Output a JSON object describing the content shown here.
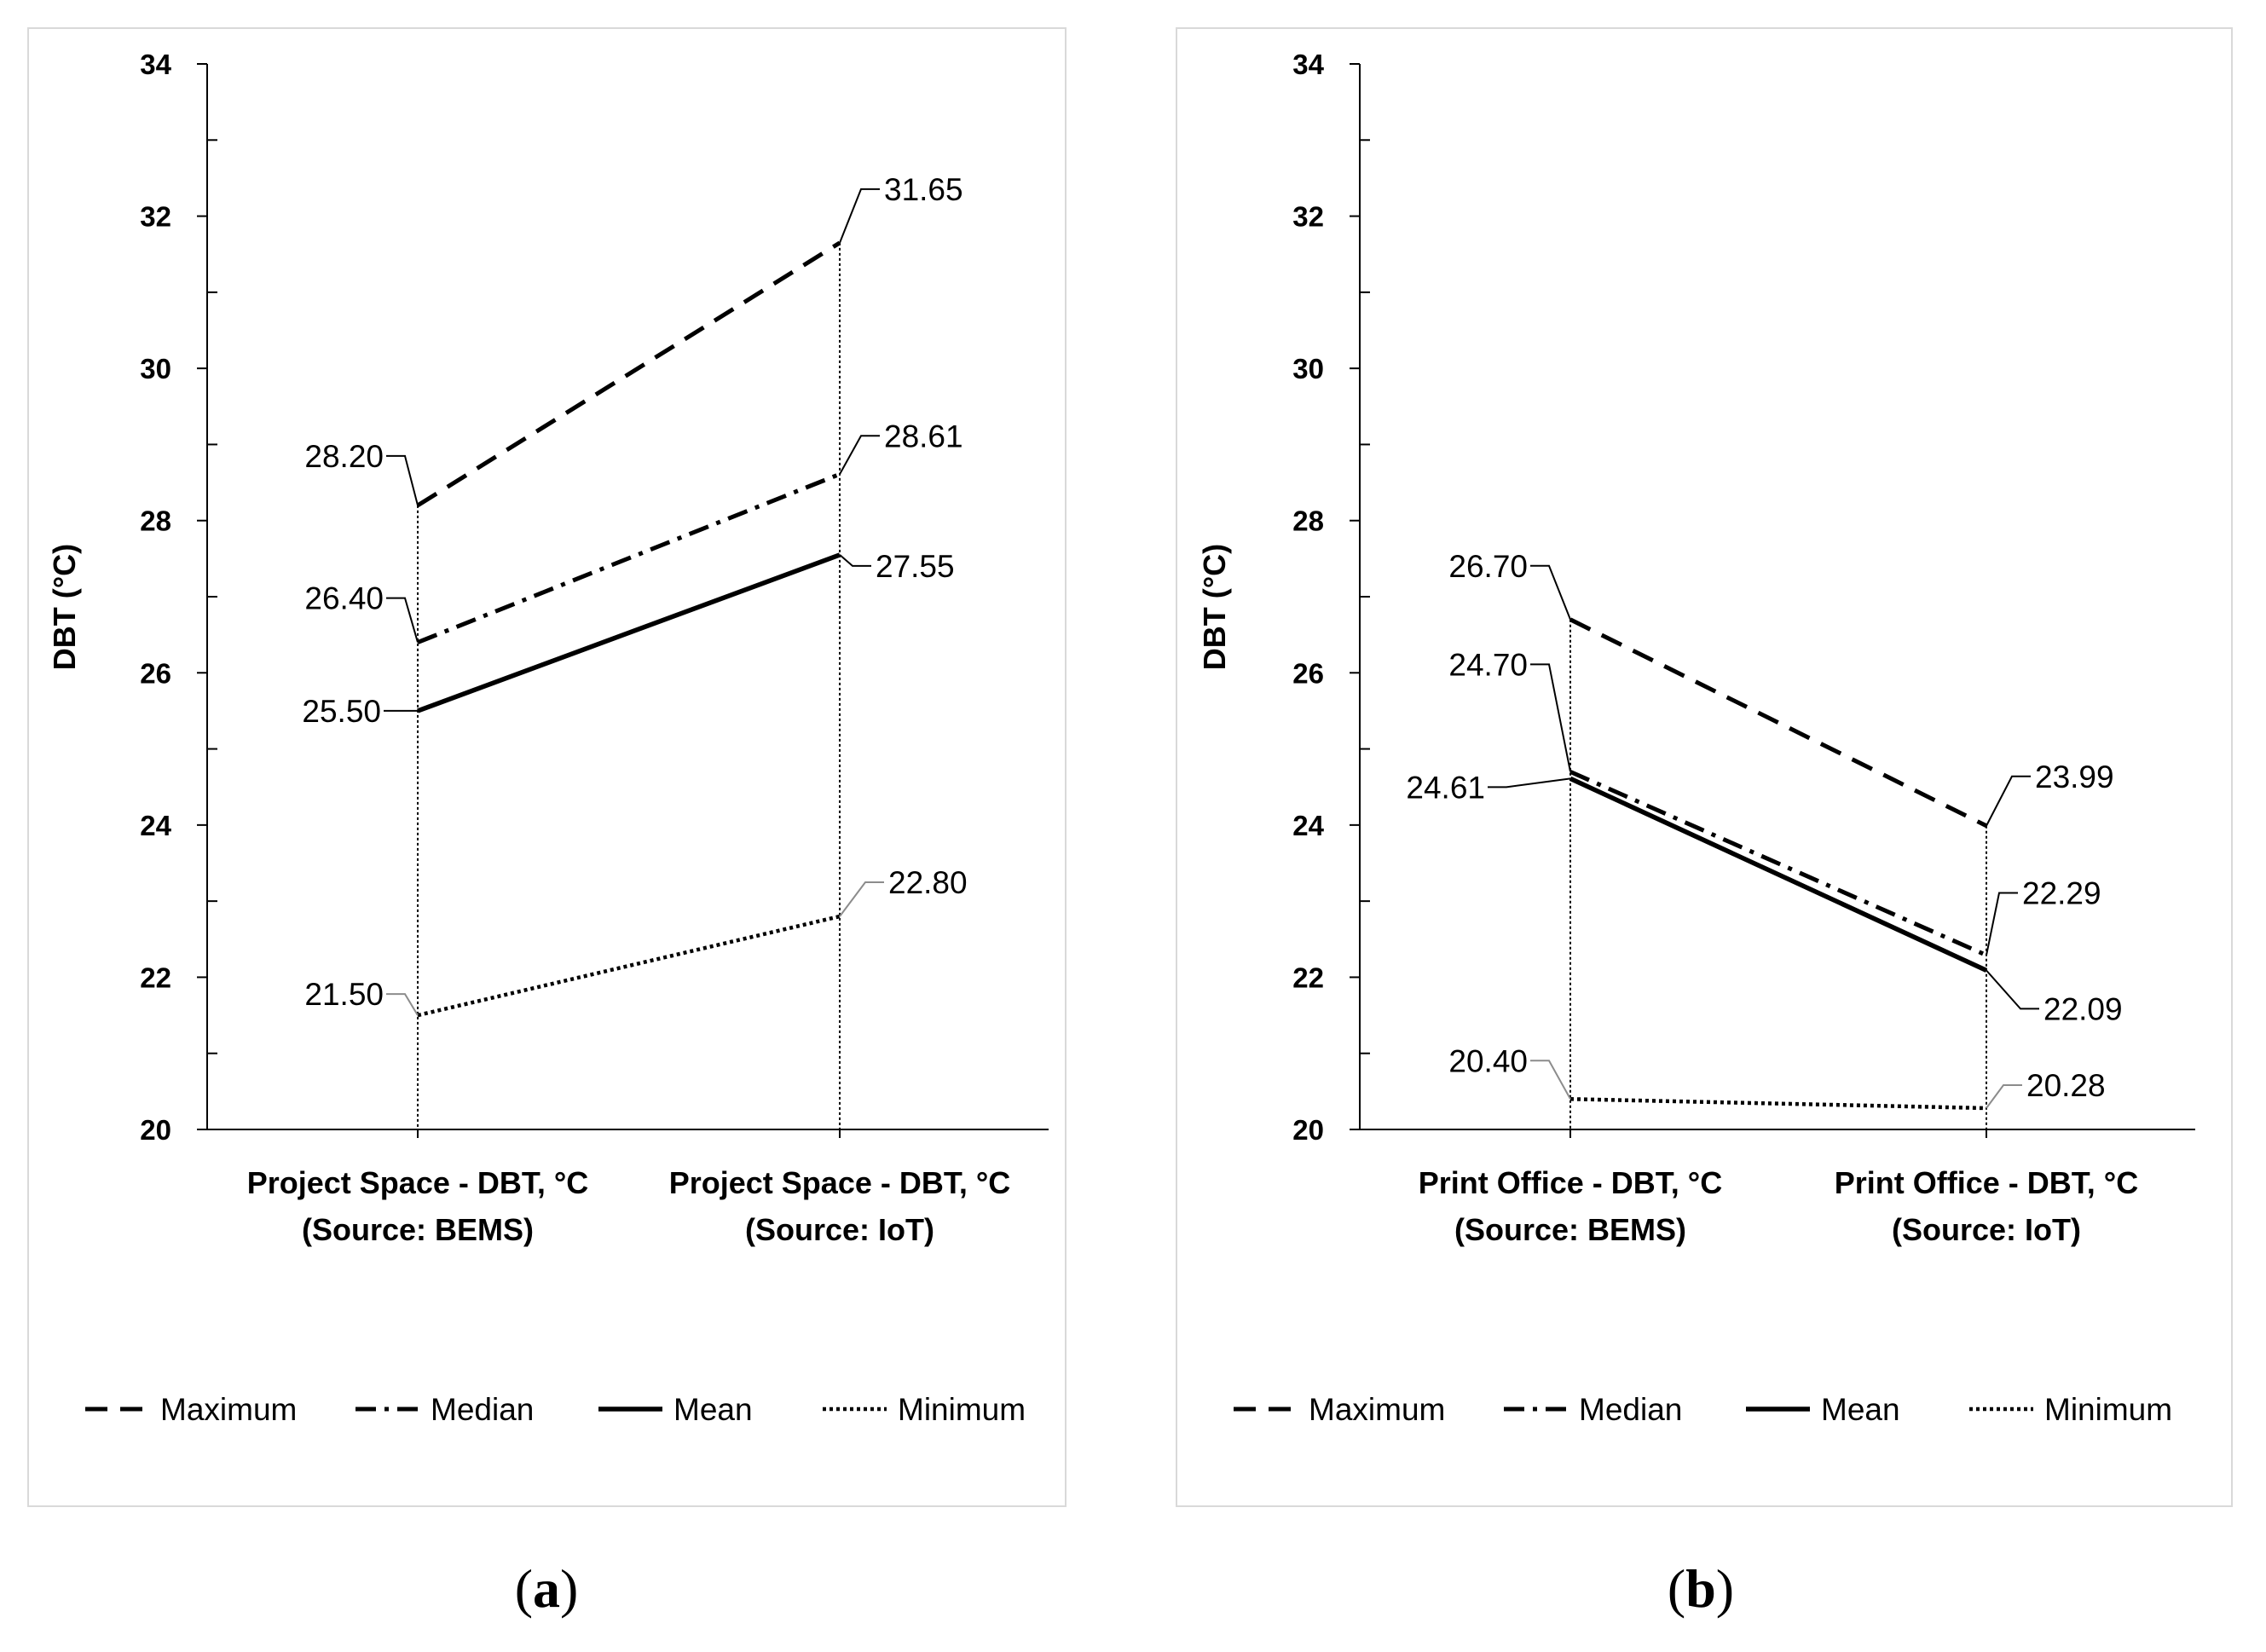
{
  "chart_data": [
    {
      "type": "line",
      "panel_label": "a",
      "categories": [
        "Project Space - DBT, °C (Source: BEMS)",
        "Project Space - DBT, °C (Source: IoT)"
      ],
      "category_lines": [
        [
          "Project Space - DBT, °C",
          "(Source: BEMS)"
        ],
        [
          "Project Space - DBT, °C",
          "(Source: IoT)"
        ]
      ],
      "ylabel": "DBT (°C)",
      "ylim": [
        20,
        34
      ],
      "yticks": [
        20,
        22,
        24,
        26,
        28,
        30,
        32,
        34
      ],
      "series": [
        {
          "name": "Maximum",
          "values": [
            28.2,
            31.65
          ],
          "labels": [
            "28.20",
            "31.65"
          ],
          "style": "dashed"
        },
        {
          "name": "Median",
          "values": [
            26.4,
            28.61
          ],
          "labels": [
            "26.40",
            "28.61"
          ],
          "style": "dashdot"
        },
        {
          "name": "Mean",
          "values": [
            25.5,
            27.55
          ],
          "labels": [
            "25.50",
            "27.55"
          ],
          "style": "solid"
        },
        {
          "name": "Minimum",
          "values": [
            21.5,
            22.8
          ],
          "labels": [
            "21.50",
            "22.80"
          ],
          "style": "dotted"
        }
      ],
      "legend_position": "bottom",
      "grid": false
    },
    {
      "type": "line",
      "panel_label": "b",
      "categories": [
        "Print Office - DBT, °C (Source: BEMS)",
        "Print Office - DBT, °C (Source: IoT)"
      ],
      "category_lines": [
        [
          "Print Office -  DBT, °C",
          "(Source: BEMS)"
        ],
        [
          "Print Office -  DBT, °C",
          "(Source: IoT)"
        ]
      ],
      "ylabel": "DBT  (°C)",
      "ylim": [
        20,
        34
      ],
      "yticks": [
        20,
        22,
        24,
        26,
        28,
        30,
        32,
        34
      ],
      "series": [
        {
          "name": "Maximum",
          "values": [
            26.7,
            23.99
          ],
          "labels": [
            "26.70",
            "23.99"
          ],
          "style": "dashed"
        },
        {
          "name": "Median",
          "values": [
            24.7,
            22.29
          ],
          "labels": [
            "24.70",
            "22.29"
          ],
          "style": "dashdot"
        },
        {
          "name": "Mean",
          "values": [
            24.61,
            22.09
          ],
          "labels": [
            "24.61",
            "22.09"
          ],
          "style": "solid"
        },
        {
          "name": "Minimum",
          "values": [
            20.4,
            20.28
          ],
          "labels": [
            "20.40",
            "20.28"
          ],
          "style": "dotted"
        }
      ],
      "legend_position": "bottom",
      "grid": false
    }
  ],
  "colors": {
    "line": "#000000",
    "leader": "#000000",
    "leader_light": "#8c8c8c",
    "frame": "#d9d9d9"
  }
}
